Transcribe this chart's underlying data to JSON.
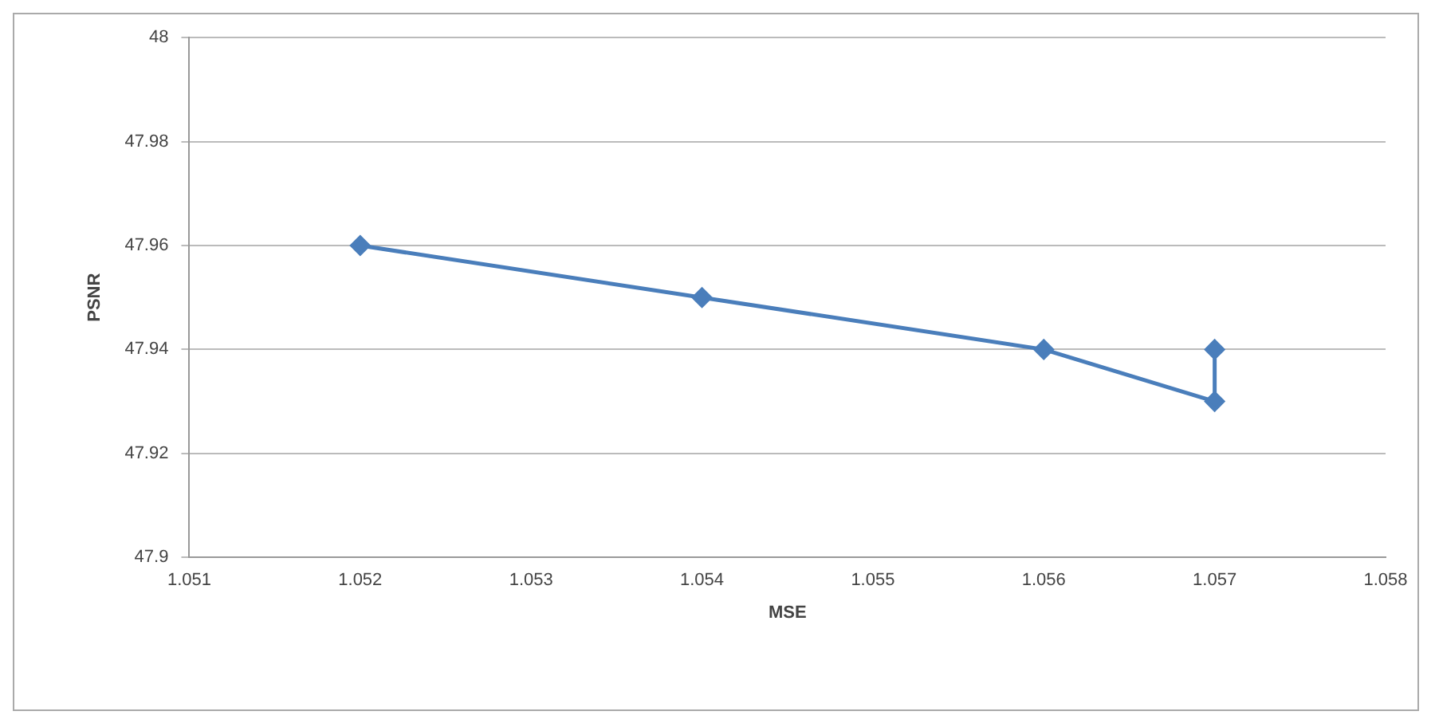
{
  "chart_data": {
    "type": "line",
    "xlabel": "MSE",
    "ylabel": "PSNR",
    "x": [
      1.052,
      1.054,
      1.056,
      1.057,
      1.057
    ],
    "series": [
      {
        "color": "#4a7ebb",
        "values": [
          47.96,
          47.95,
          47.94,
          47.93,
          47.94
        ]
      }
    ],
    "xlim": [
      1.051,
      1.058
    ],
    "xticks": [
      1.051,
      1.052,
      1.053,
      1.054,
      1.055,
      1.056,
      1.057,
      1.058
    ],
    "ylim": [
      47.9,
      48
    ],
    "yticks": [
      47.9,
      47.92,
      47.94,
      47.96,
      47.98,
      48
    ],
    "grid": "y",
    "marker": "diamond",
    "line_style": "solid",
    "legend": false
  }
}
